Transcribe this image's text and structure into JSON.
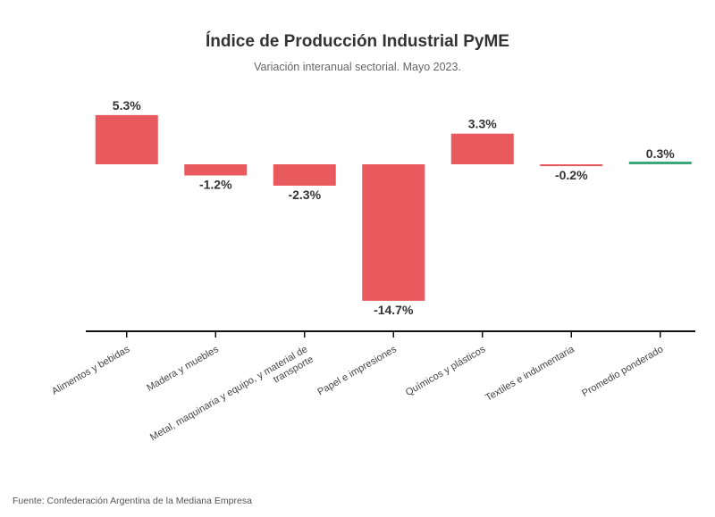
{
  "title": "Índice de Producción Industrial PyME",
  "subtitle": "Variación interanual sectorial. Mayo 2023.",
  "source": "Fuente: Confederación Argentina de la Mediana Empresa",
  "colors": {
    "negative_bar": "#e85a5e",
    "positive_bar": "#e85a5e",
    "average_line": "#3aa67a",
    "axis": "#111111"
  },
  "chart_data": {
    "type": "bar",
    "title": "Índice de Producción Industrial PyME",
    "subtitle": "Variación interanual sectorial. Mayo 2023.",
    "categories": [
      "Alimentos y bebidas",
      "Madera y muebles",
      "Metal, maquinaria y equipo, y material de transporte",
      "Papel e impresiones",
      "Químicos y plásticos",
      "Textiles e indumentaria",
      "Promedio ponderado"
    ],
    "category_label_lines": [
      [
        "Alimentos y bebidas"
      ],
      [
        "Madera y muebles"
      ],
      [
        "Metal, maquinaria y equipo, y material de",
        "transporte"
      ],
      [
        "Papel e impresiones"
      ],
      [
        "Químicos y plásticos"
      ],
      [
        "Textiles e indumentaria"
      ],
      [
        "Promedio ponderado"
      ]
    ],
    "values": [
      5.3,
      -1.2,
      -2.3,
      -14.7,
      3.3,
      -0.2,
      0.3
    ],
    "value_labels": [
      "5.3%",
      "-1.2%",
      "-2.3%",
      "-14.7%",
      "3.3%",
      "-0.2%",
      "0.3%"
    ],
    "xlabel": "",
    "ylabel": "",
    "grid": false,
    "legend": "none"
  }
}
